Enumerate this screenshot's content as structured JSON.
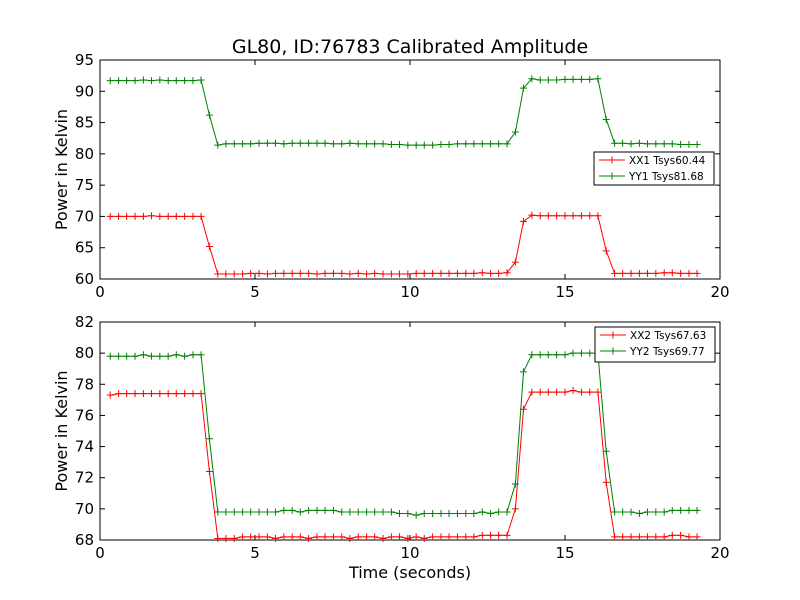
{
  "figure": {
    "title": "GL80, ID:76783 Calibrated Amplitude",
    "xlabel": "Time (seconds)"
  },
  "chart_data": [
    {
      "type": "line",
      "title": "GL80, ID:76783 Calibrated Amplitude",
      "xlabel": "",
      "ylabel": "Power in Kelvin",
      "xlim": [
        0,
        20
      ],
      "ylim": [
        60,
        95
      ],
      "xticks": [
        0,
        5,
        10,
        15,
        20
      ],
      "yticks": [
        60,
        65,
        70,
        75,
        80,
        85,
        90,
        95
      ],
      "legend_position": "center-right",
      "grid": false,
      "x": [
        0.33,
        0.6,
        0.86,
        1.13,
        1.4,
        1.66,
        1.93,
        2.2,
        2.46,
        2.73,
        3.0,
        3.26,
        3.53,
        3.8,
        4.06,
        4.33,
        4.6,
        4.86,
        5.13,
        5.4,
        5.66,
        5.93,
        6.2,
        6.46,
        6.73,
        7.0,
        7.26,
        7.53,
        7.8,
        8.06,
        8.33,
        8.6,
        8.86,
        9.13,
        9.4,
        9.66,
        9.93,
        10.2,
        10.46,
        10.73,
        11.0,
        11.26,
        11.53,
        11.8,
        12.06,
        12.33,
        12.6,
        12.86,
        13.13,
        13.4,
        13.66,
        13.93,
        14.2,
        14.46,
        14.73,
        15.0,
        15.26,
        15.53,
        15.8,
        16.06,
        16.33,
        16.6,
        16.86,
        17.13,
        17.4,
        17.66,
        17.93,
        18.2,
        18.46,
        18.73,
        19.0,
        19.26
      ],
      "series": [
        {
          "name": "XX1 Tsys60.44",
          "color": "#ff0000",
          "values": [
            70.0,
            70.0,
            70.0,
            70.0,
            70.0,
            70.1,
            70.0,
            70.0,
            70.0,
            70.0,
            70.0,
            70.0,
            65.2,
            60.8,
            60.8,
            60.8,
            60.8,
            60.9,
            60.9,
            60.8,
            60.9,
            60.9,
            60.9,
            60.9,
            60.9,
            60.8,
            60.9,
            60.9,
            60.9,
            60.8,
            60.9,
            60.8,
            60.9,
            60.8,
            60.8,
            60.8,
            60.8,
            60.9,
            60.9,
            60.9,
            60.9,
            60.9,
            60.9,
            60.9,
            60.9,
            61.0,
            60.9,
            60.9,
            61.0,
            62.7,
            69.2,
            70.2,
            70.1,
            70.1,
            70.1,
            70.1,
            70.1,
            70.1,
            70.1,
            70.1,
            64.5,
            60.9,
            60.9,
            60.9,
            60.9,
            60.9,
            60.9,
            61.0,
            61.0,
            60.9,
            60.9,
            60.9
          ]
        },
        {
          "name": "YY1 Tsys81.68",
          "color": "#008000",
          "values": [
            91.7,
            91.7,
            91.7,
            91.7,
            91.8,
            91.7,
            91.8,
            91.7,
            91.7,
            91.7,
            91.7,
            91.8,
            86.2,
            81.4,
            81.6,
            81.6,
            81.6,
            81.6,
            81.7,
            81.7,
            81.7,
            81.6,
            81.7,
            81.7,
            81.7,
            81.7,
            81.7,
            81.6,
            81.6,
            81.7,
            81.6,
            81.6,
            81.6,
            81.6,
            81.5,
            81.5,
            81.4,
            81.4,
            81.4,
            81.4,
            81.5,
            81.5,
            81.6,
            81.6,
            81.6,
            81.6,
            81.6,
            81.6,
            81.6,
            83.5,
            90.5,
            92.0,
            91.8,
            91.8,
            91.8,
            91.9,
            91.9,
            91.9,
            91.9,
            92.0,
            85.5,
            81.7,
            81.7,
            81.6,
            81.7,
            81.6,
            81.6,
            81.6,
            81.6,
            81.5,
            81.5,
            81.5
          ]
        }
      ]
    },
    {
      "type": "line",
      "title": "",
      "xlabel": "Time (seconds)",
      "ylabel": "Power in Kelvin",
      "xlim": [
        0,
        20
      ],
      "ylim": [
        68,
        82
      ],
      "xticks": [
        0,
        5,
        10,
        15,
        20
      ],
      "yticks": [
        68,
        70,
        72,
        74,
        76,
        78,
        80,
        82
      ],
      "legend_position": "top-right",
      "grid": false,
      "x": [
        0.33,
        0.6,
        0.86,
        1.13,
        1.4,
        1.66,
        1.93,
        2.2,
        2.46,
        2.73,
        3.0,
        3.26,
        3.53,
        3.8,
        4.06,
        4.33,
        4.6,
        4.86,
        5.13,
        5.4,
        5.66,
        5.93,
        6.2,
        6.46,
        6.73,
        7.0,
        7.26,
        7.53,
        7.8,
        8.06,
        8.33,
        8.6,
        8.86,
        9.13,
        9.4,
        9.66,
        9.93,
        10.2,
        10.46,
        10.73,
        11.0,
        11.26,
        11.53,
        11.8,
        12.06,
        12.33,
        12.6,
        12.86,
        13.13,
        13.4,
        13.66,
        13.93,
        14.2,
        14.46,
        14.73,
        15.0,
        15.26,
        15.53,
        15.8,
        16.06,
        16.33,
        16.6,
        16.86,
        17.13,
        17.4,
        17.66,
        17.93,
        18.2,
        18.46,
        18.73,
        19.0,
        19.26
      ],
      "series": [
        {
          "name": "XX2 Tsys67.63",
          "color": "#ff0000",
          "values": [
            77.3,
            77.4,
            77.4,
            77.4,
            77.4,
            77.4,
            77.4,
            77.4,
            77.4,
            77.4,
            77.4,
            77.4,
            72.4,
            68.1,
            68.1,
            68.1,
            68.2,
            68.2,
            68.2,
            68.2,
            68.1,
            68.2,
            68.2,
            68.2,
            68.1,
            68.2,
            68.2,
            68.2,
            68.2,
            68.1,
            68.2,
            68.2,
            68.2,
            68.1,
            68.2,
            68.2,
            68.1,
            68.2,
            68.1,
            68.2,
            68.2,
            68.2,
            68.2,
            68.2,
            68.2,
            68.3,
            68.3,
            68.3,
            68.3,
            70.0,
            76.4,
            77.5,
            77.5,
            77.5,
            77.5,
            77.5,
            77.6,
            77.5,
            77.5,
            77.5,
            71.7,
            68.2,
            68.2,
            68.2,
            68.2,
            68.2,
            68.2,
            68.2,
            68.3,
            68.3,
            68.2,
            68.2
          ]
        },
        {
          "name": "YY2 Tsys69.77",
          "color": "#008000",
          "values": [
            79.8,
            79.8,
            79.8,
            79.8,
            79.9,
            79.8,
            79.8,
            79.8,
            79.9,
            79.8,
            79.9,
            79.9,
            74.5,
            69.8,
            69.8,
            69.8,
            69.8,
            69.8,
            69.8,
            69.8,
            69.8,
            69.9,
            69.9,
            69.8,
            69.9,
            69.9,
            69.9,
            69.9,
            69.8,
            69.8,
            69.8,
            69.8,
            69.8,
            69.8,
            69.8,
            69.7,
            69.7,
            69.6,
            69.7,
            69.7,
            69.7,
            69.7,
            69.7,
            69.7,
            69.7,
            69.8,
            69.7,
            69.8,
            69.8,
            71.6,
            78.8,
            79.9,
            79.9,
            79.9,
            79.9,
            79.9,
            80.0,
            80.0,
            80.0,
            80.0,
            73.7,
            69.8,
            69.8,
            69.8,
            69.7,
            69.8,
            69.8,
            69.8,
            69.9,
            69.9,
            69.9,
            69.9
          ]
        }
      ]
    }
  ]
}
